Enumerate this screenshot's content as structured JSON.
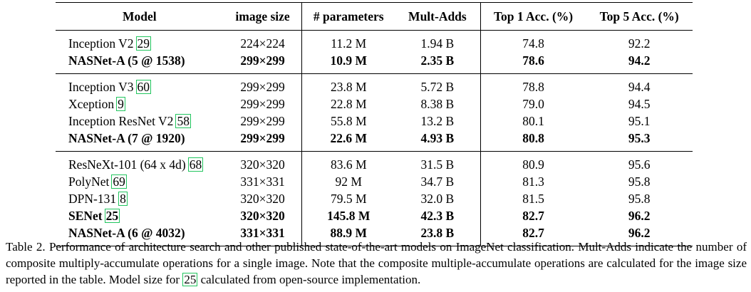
{
  "table": {
    "headers": [
      "Model",
      "image size",
      "# parameters",
      "Mult-Adds",
      "Top 1 Acc. (%)",
      "Top 5 Acc. (%)"
    ],
    "groups": [
      [
        {
          "model": "Inception V2",
          "cite": "29",
          "size": "224×224",
          "params": "11.2 M",
          "madds": "1.94 B",
          "top1": "74.8",
          "top5": "92.2",
          "bold": false
        },
        {
          "model": "NASNet-A (5 @ 1538)",
          "cite": "",
          "size": "299×299",
          "params": "10.9 M",
          "madds": "2.35 B",
          "top1": "78.6",
          "top5": "94.2",
          "bold": true
        }
      ],
      [
        {
          "model": "Inception V3",
          "cite": "60",
          "size": "299×299",
          "params": "23.8 M",
          "madds": "5.72 B",
          "top1": "78.8",
          "top5": "94.4",
          "bold": false
        },
        {
          "model": "Xception",
          "cite": "9",
          "size": "299×299",
          "params": "22.8 M",
          "madds": "8.38 B",
          "top1": "79.0",
          "top5": "94.5",
          "bold": false
        },
        {
          "model": "Inception ResNet V2",
          "cite": "58",
          "size": "299×299",
          "params": "55.8 M",
          "madds": "13.2 B",
          "top1": "80.1",
          "top5": "95.1",
          "bold": false
        },
        {
          "model": "NASNet-A (7 @ 1920)",
          "cite": "",
          "size": "299×299",
          "params": "22.6 M",
          "madds": "4.93 B",
          "top1": "80.8",
          "top5": "95.3",
          "bold": true
        }
      ],
      [
        {
          "model": "ResNeXt-101 (64 x 4d)",
          "cite": "68",
          "size": "320×320",
          "params": "83.6 M",
          "madds": "31.5 B",
          "top1": "80.9",
          "top5": "95.6",
          "bold": false
        },
        {
          "model": "PolyNet",
          "cite": "69",
          "size": "331×331",
          "params": "92 M",
          "madds": "34.7 B",
          "top1": "81.3",
          "top5": "95.8",
          "bold": false
        },
        {
          "model": "DPN-131",
          "cite": "8",
          "size": "320×320",
          "params": "79.5 M",
          "madds": "32.0 B",
          "top1": "81.5",
          "top5": "95.8",
          "bold": false
        },
        {
          "model": "SENet",
          "cite": "25",
          "size": "320×320",
          "params": "145.8 M",
          "madds": "42.3 B",
          "top1": "82.7",
          "top5": "96.2",
          "bold": true
        },
        {
          "model": "NASNet-A (6 @ 4032)",
          "cite": "",
          "size": "331×331",
          "params": "88.9 M",
          "madds": "23.8 B",
          "top1": "82.7",
          "top5": "96.2",
          "bold": true
        }
      ]
    ]
  },
  "caption": {
    "part1": "Table 2. Performance of architecture search and other published state-of-the-art models on ImageNet classification. Mult-Adds indicate the number of composite multiply-accumulate operations for a single image. Note that the composite multiple-accumulate operations are calculated for the image size reported in the table. Model size for ",
    "cite": "25",
    "part2": " calculated from open-source implementation."
  }
}
